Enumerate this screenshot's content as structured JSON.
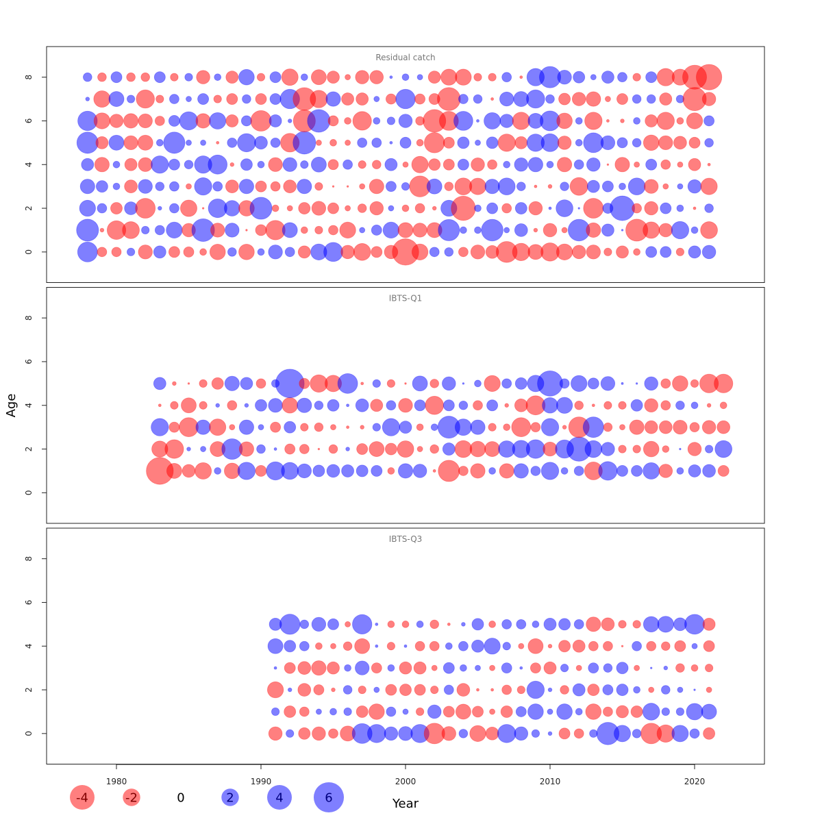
{
  "colors": {
    "positive": "#0000ff",
    "negative": "#ff0000"
  },
  "chart_data": {
    "type": "scatter",
    "subtype": "bubble",
    "xlabel": "Year",
    "ylabel": "Age",
    "xlim": [
      1975,
      2025
    ],
    "ylim": [
      -1.4,
      9.4
    ],
    "xticks": [
      1980,
      1990,
      2000,
      2010,
      2020
    ],
    "yticks": [
      0,
      2,
      4,
      6,
      8
    ],
    "legend": {
      "placement": "bottom-left",
      "values": [
        -4,
        -2,
        0,
        2,
        4,
        6
      ],
      "labels": [
        "-4",
        "-2",
        "0",
        "2",
        "4",
        "6"
      ]
    },
    "panels": [
      {
        "title": "Residual catch",
        "start_year": 1978,
        "ages": [
          0,
          1,
          2,
          3,
          4,
          5,
          6,
          7,
          8
        ],
        "values": {
          "8": [
            0.5,
            -0.5,
            0.8,
            -0.5,
            -0.5,
            0.8,
            -0.4,
            0.4,
            -1.2,
            0.3,
            -1,
            1.6,
            -0.4,
            0.8,
            -1.8,
            0.3,
            -1.5,
            -1,
            -0.2,
            -1.2,
            -1.2,
            0.05,
            0.3,
            0.2,
            -1,
            -1.7,
            -1.7,
            -0.4,
            -0.4,
            0.6,
            -0.05,
            2,
            3,
            1.3,
            0.9,
            0.2,
            1,
            0.6,
            -0.4,
            0.8,
            -2,
            -1.7,
            -3.8,
            -4.3
          ],
          "7": [
            0.1,
            -1.8,
            1.5,
            0.4,
            -2.2,
            -0.4,
            0.6,
            0.2,
            0.8,
            -0.4,
            -0.8,
            0.5,
            -0.8,
            0.8,
            2.5,
            -3.4,
            -2,
            1.4,
            -1,
            -1,
            0.2,
            -0.7,
            2.5,
            -0.7,
            -0.8,
            -3.5,
            0.6,
            0.5,
            -0.05,
            1.3,
            1.5,
            2.2,
            0.5,
            -0.9,
            -1.2,
            -1.4,
            -0.2,
            -0.8,
            0.5,
            0.5,
            -1,
            0.4,
            -3.6,
            -1.2
          ],
          "6": [
            2.5,
            -1.7,
            -1.2,
            -1.4,
            -1.3,
            -0.6,
            0.8,
            2.2,
            -1.4,
            1.8,
            -1,
            0.7,
            -2.8,
            1,
            0.1,
            -3.2,
            3.4,
            -0.7,
            -0.3,
            -2.3,
            0.3,
            0.4,
            1.2,
            -0.5,
            -3.4,
            -2.4,
            2.4,
            0.05,
            1.8,
            1.2,
            -2,
            1.5,
            2.6,
            -1.6,
            0.3,
            -2,
            -0.05,
            -0.1,
            0.3,
            -1,
            -2,
            -0.3,
            -1.7,
            0.7
          ],
          "5": [
            3,
            -1,
            1.5,
            -1.3,
            -1.5,
            0.3,
            3,
            0.2,
            0.2,
            -0.05,
            0.6,
            2.2,
            1.1,
            0.6,
            -2.3,
            3.4,
            -0.2,
            -0.3,
            -0.2,
            0.6,
            0.6,
            0.05,
            0.8,
            -0.3,
            -2.7,
            -0.8,
            0.9,
            0.2,
            0.9,
            -2,
            -1,
            2,
            2.1,
            -1.2,
            0.3,
            2.6,
            1.3,
            0.7,
            0.5,
            -1.6,
            -1.3,
            -1.1,
            -0.8,
            0.5
          ],
          "4": [
            1,
            -1.4,
            0.3,
            -1,
            -1.3,
            2,
            0.8,
            0.5,
            2,
            2.4,
            -0.1,
            0.9,
            0.3,
            -1.3,
            1.3,
            0.4,
            1.5,
            -0.7,
            0.6,
            -0.4,
            -0.5,
            1,
            -0.2,
            -1.8,
            -0.9,
            -0.8,
            0.8,
            -1.2,
            -0.6,
            0.3,
            1.2,
            1.4,
            0.3,
            -1.4,
            0.6,
            1.2,
            -0.02,
            -1.4,
            -0.2,
            0.8,
            -0.6,
            -0.2,
            -1,
            -0.05
          ],
          "3": [
            1.4,
            0.9,
            0.3,
            -1.1,
            1.3,
            0.5,
            0.6,
            -0.2,
            2,
            0.6,
            -1.1,
            1.4,
            -0.8,
            -0.6,
            -1.1,
            1.4,
            -0.4,
            -0.02,
            -0.02,
            -0.2,
            -1.4,
            0.7,
            0.4,
            -2.9,
            1.5,
            -0.5,
            -1.9,
            -1.8,
            1.4,
            1.9,
            0.5,
            -0.05,
            -0.1,
            0.5,
            -2.1,
            1,
            0.8,
            0.3,
            1.9,
            -1.3,
            -0.2,
            0.2,
            1.2,
            -1.8
          ],
          "2": [
            1.7,
            0.6,
            -0.9,
            1.1,
            -2.6,
            0.1,
            0.6,
            -1.8,
            -0.02,
            2.3,
            1.6,
            -1.6,
            3.2,
            -0.3,
            -0.2,
            -0.9,
            -1.3,
            -0.8,
            -0.2,
            -0.5,
            -1.2,
            0.2,
            -0.3,
            -0.6,
            -0.1,
            1.7,
            -3.9,
            0.3,
            0.8,
            -0.6,
            0.9,
            -1.2,
            0.05,
            1.9,
            0.02,
            -2.6,
            0.7,
            4,
            -0.6,
            -1.2,
            0.8,
            0.3,
            -0.05,
            0.5
          ],
          "1": [
            3.2,
            -0.1,
            -2.3,
            -1.9,
            0.4,
            0.6,
            1.7,
            -1.2,
            3.4,
            -1.3,
            1.3,
            -0.02,
            -0.8,
            -2.5,
            1.5,
            -0.3,
            -0.4,
            -0.6,
            -1.7,
            0.2,
            0.7,
            1.7,
            -1.5,
            -1.3,
            -1.5,
            3,
            0.3,
            0.3,
            3.1,
            0.2,
            1.1,
            -0.1,
            -1.2,
            -0.2,
            3.1,
            -1.4,
            1,
            0.02,
            -3.2,
            -1.8,
            -1.2,
            2,
            0.3,
            -1.9
          ],
          "0": [
            2.6,
            -0.6,
            -0.6,
            0.4,
            -1.3,
            1,
            -0.8,
            -0.7,
            -0.3,
            -1.6,
            0.5,
            -1.6,
            0.3,
            1.3,
            0.6,
            -1,
            1.7,
            2.4,
            -1.2,
            -1.9,
            -0.8,
            -1.2,
            -4.6,
            -1.7,
            0.6,
            0.5,
            -0.6,
            -1.3,
            -1.1,
            -2.9,
            -2,
            -1.5,
            -2.2,
            -1.7,
            -1.2,
            -1.3,
            -0.4,
            -1,
            -0.3,
            0.8,
            0.8,
            -0.4,
            1,
            1.2
          ]
        }
      },
      {
        "title": "IBTS-Q1",
        "start_year": 1983,
        "ages": [
          1,
          2,
          3,
          4,
          5
        ],
        "values": {
          "5": [
            1,
            -0.1,
            -0.02,
            -0.4,
            -0.9,
            1.4,
            1,
            -0.6,
            0.4,
            5.4,
            -0.7,
            -2,
            -1.8,
            2.6,
            -0.05,
            0.4,
            -0.4,
            -0.02,
            1.5,
            -0.5,
            1.2,
            0.02,
            0.3,
            -1.7,
            0.6,
            0.9,
            1.8,
            4.2,
            0.6,
            1.7,
            0.8,
            1.3,
            0.03,
            0.02,
            1.2,
            -0.6,
            -1.6,
            -0.4,
            -2.3,
            -2.3
          ],
          "4": [
            -0.05,
            -0.4,
            -1.5,
            -0.4,
            0.1,
            -0.6,
            0.1,
            0.9,
            1.3,
            -1.6,
            1.4,
            0.5,
            0.9,
            0.05,
            1.1,
            -1,
            0.6,
            -1.3,
            0.8,
            -2.2,
            0.8,
            0.5,
            -0.6,
            0.8,
            -0.1,
            -1.1,
            -2.4,
            1.6,
            1.7,
            -0.5,
            -0.05,
            -0.4,
            -0.4,
            0.9,
            -1.2,
            -0.6,
            0.5,
            0.3,
            -0.1,
            -0.3
          ],
          "3": [
            2,
            -0.7,
            -2.4,
            1.4,
            -1.8,
            -0.2,
            1.4,
            0.2,
            -0.7,
            0.9,
            -0.4,
            -0.5,
            -0.2,
            -0.05,
            -0.1,
            0.4,
            2,
            1,
            -0.3,
            0.3,
            3.2,
            1.8,
            1.4,
            -0.4,
            -0.3,
            -2.4,
            -0.6,
            2,
            -0.1,
            -2.8,
            2.8,
            -0.5,
            -0.2,
            -1.4,
            -1.1,
            -1.1,
            -1.3,
            -0.6,
            -1.2,
            -1.1
          ],
          "2": [
            -1.7,
            -2.3,
            0.1,
            0.2,
            -1.5,
            2.8,
            -1.4,
            0.5,
            0.05,
            -0.7,
            -0.6,
            -0.02,
            -0.5,
            0.1,
            -0.8,
            -1.5,
            -0.9,
            -1.8,
            -0.2,
            -0.5,
            1,
            -1.9,
            -1.6,
            -1.5,
            1.8,
            2,
            2.3,
            -1.3,
            2.2,
            3.9,
            1.9,
            1.2,
            -0.4,
            -0.4,
            -1.6,
            -0.3,
            0.02,
            -1.2,
            0.4,
            1.9
          ],
          "1": [
            -4.8,
            -1.5,
            -1.1,
            -1.8,
            0.3,
            -1.6,
            2,
            -0.8,
            2.2,
            1.9,
            1.3,
            0.9,
            1.1,
            1,
            0.9,
            0.8,
            -0.3,
            1.4,
            1.2,
            -0.05,
            -3,
            -0.6,
            -1.4,
            0.3,
            -1.4,
            1.4,
            0.6,
            2,
            0.3,
            0.6,
            -2.1,
            2.3,
            0.8,
            0.8,
            1.8,
            -1.2,
            0.3,
            1,
            1.1,
            -0.8
          ]
        }
      },
      {
        "title": "IBTS-Q3",
        "start_year": 1991,
        "ages": [
          0,
          1,
          2,
          3,
          4,
          5
        ],
        "values": {
          "5": [
            1,
            2.7,
            0.5,
            1.3,
            0.8,
            -0.2,
            2.5,
            0.05,
            -0.3,
            -0.3,
            0.3,
            -0.5,
            -0.05,
            0.1,
            0.9,
            -0.3,
            0.6,
            0.6,
            0.3,
            1,
            0.9,
            0.6,
            -1.4,
            -1.1,
            -0.4,
            -0.4,
            1.6,
            1.7,
            1.1,
            2.6,
            -1
          ],
          "4": [
            1.5,
            0.9,
            0.6,
            -0.3,
            -0.2,
            -0.5,
            -1.5,
            0.05,
            -0.4,
            0.05,
            -0.6,
            -0.6,
            0.3,
            0.6,
            1,
            1.7,
            0.4,
            -0.2,
            -1.5,
            -0.1,
            -0.9,
            -1,
            -0.6,
            -0.6,
            -0.02,
            0.6,
            -0.6,
            -0.5,
            -0.8,
            0.2,
            -0.8
          ],
          "3": [
            0.05,
            -0.8,
            -1.1,
            -1.4,
            -1,
            0.3,
            1.3,
            -0.7,
            0.3,
            -1,
            -1,
            -0.2,
            0.8,
            0.3,
            0.2,
            -0.2,
            0.7,
            0.05,
            -0.7,
            -1,
            0.4,
            -0.2,
            0.7,
            0.5,
            0.9,
            -0.2,
            0.02,
            0.1,
            -0.5,
            -0.3,
            -0.4
          ],
          "2": [
            -1.7,
            0.1,
            -1.1,
            -0.7,
            -0.1,
            0.5,
            -0.4,
            0.2,
            -0.8,
            -0.9,
            -0.8,
            -0.4,
            0.6,
            -1.1,
            -0.05,
            -0.05,
            -0.6,
            -0.4,
            2,
            0.1,
            -0.5,
            1,
            -0.9,
            0.7,
            0.9,
            0.3,
            -0.2,
            0.5,
            0.2,
            0.02,
            -0.2
          ],
          "1": [
            0.4,
            -0.9,
            -0.6,
            0.2,
            0.3,
            0.4,
            -0.9,
            -1.6,
            0.6,
            0.2,
            -0.4,
            1.2,
            -0.8,
            -1.5,
            -0.8,
            -0.2,
            -0.9,
            0.7,
            1.6,
            0.2,
            1.6,
            0.3,
            -1.6,
            -0.6,
            -1,
            -0.9,
            1.9,
            0.4,
            0.4,
            1.8,
            1.5
          ],
          "0": [
            -1.2,
            0.4,
            -0.9,
            -1.2,
            -0.6,
            -1.5,
            2.6,
            2.2,
            1.2,
            1.3,
            2.2,
            -2.8,
            -1.3,
            0.5,
            -1.7,
            -1.1,
            2.2,
            1.2,
            0.4,
            0.1,
            -0.8,
            -0.6,
            0.4,
            3.3,
            1.8,
            0.5,
            -2.8,
            -2,
            1.8,
            0.6,
            -0.9
          ]
        }
      }
    ]
  }
}
